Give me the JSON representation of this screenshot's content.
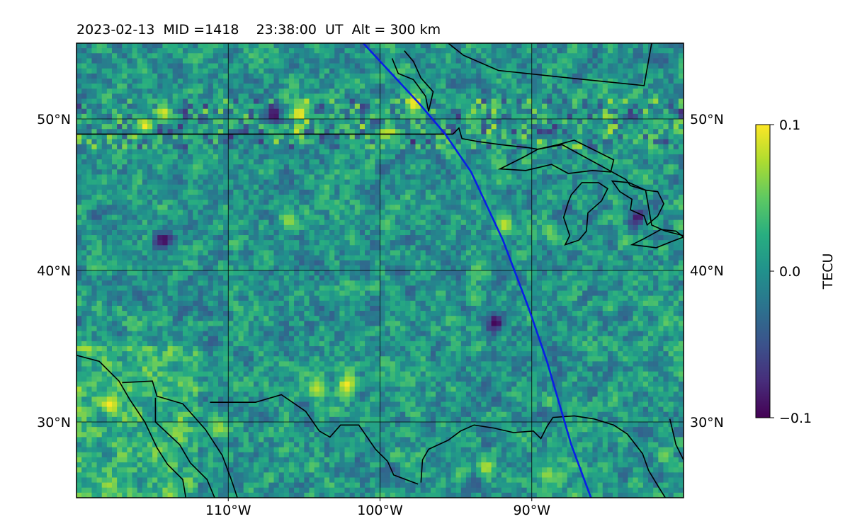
{
  "chart_data": {
    "type": "heatmap",
    "title": "2023-02-13  MID =1418    23:38:00  UT  Alt = 300 km",
    "projection": "map",
    "xlim": [
      -120,
      -80
    ],
    "ylim": [
      25,
      55
    ],
    "x_ticks": [
      {
        "value": -110,
        "label": "110°W"
      },
      {
        "value": -100,
        "label": "100°W"
      },
      {
        "value": -90,
        "label": "90°W"
      }
    ],
    "y_ticks": [
      {
        "value": 30,
        "label": "30°N"
      },
      {
        "value": 40,
        "label": "40°N"
      },
      {
        "value": 50,
        "label": "50°N"
      }
    ],
    "grid": true,
    "colormap": "viridis",
    "colorbar": {
      "label": "TECU",
      "vmin": -0.1,
      "vmax": 0.1,
      "ticks": [
        {
          "value": 0.1,
          "label": "0.1"
        },
        {
          "value": 0.0,
          "label": "0.0"
        },
        {
          "value": -0.1,
          "label": "−0.1"
        }
      ]
    },
    "track": {
      "color": "#0a1ee6",
      "points": [
        [
          -101.1,
          55
        ],
        [
          -97.4,
          51
        ],
        [
          -95.7,
          49
        ],
        [
          -94.0,
          46.5
        ],
        [
          -91.9,
          42
        ],
        [
          -90.2,
          37.5
        ],
        [
          -89.0,
          34
        ],
        [
          -87.4,
          28.5
        ],
        [
          -86.1,
          25
        ]
      ]
    },
    "hotspots": [
      {
        "lon": -115.5,
        "lat": 49.6,
        "value": 0.1
      },
      {
        "lon": -114.2,
        "lat": 50.4,
        "value": 0.09
      },
      {
        "lon": -105.3,
        "lat": 50.4,
        "value": 0.1
      },
      {
        "lon": -107.0,
        "lat": 50.3,
        "value": -0.1
      },
      {
        "lon": -97.7,
        "lat": 51.0,
        "value": 0.1
      },
      {
        "lon": -91.8,
        "lat": 43.0,
        "value": 0.085
      },
      {
        "lon": -117.8,
        "lat": 31.2,
        "value": 0.1
      },
      {
        "lon": -99.6,
        "lat": 49.1,
        "value": 0.08
      },
      {
        "lon": -106.0,
        "lat": 43.3,
        "value": 0.07
      },
      {
        "lon": -102.2,
        "lat": 32.4,
        "value": 0.1
      },
      {
        "lon": -104.2,
        "lat": 32.2,
        "value": 0.08
      },
      {
        "lon": -114.3,
        "lat": 42.0,
        "value": -0.1
      },
      {
        "lon": -92.4,
        "lat": 36.6,
        "value": -0.1
      },
      {
        "lon": -83.0,
        "lat": 43.5,
        "value": -0.09
      },
      {
        "lon": -110.6,
        "lat": 29.6,
        "value": 0.07
      },
      {
        "lon": -93.0,
        "lat": 27.0,
        "value": 0.08
      },
      {
        "lon": -89.0,
        "lat": 26.5,
        "value": 0.07
      }
    ],
    "coastlines": [
      [
        [
          -120,
          34.4
        ],
        [
          -118.5,
          34.0
        ],
        [
          -117.2,
          32.7
        ],
        [
          -116.5,
          31.5
        ],
        [
          -115.5,
          30.0
        ],
        [
          -114.7,
          28.3
        ],
        [
          -114.0,
          27.2
        ],
        [
          -113.0,
          26.2
        ],
        [
          -112.8,
          25.0
        ]
      ],
      [
        [
          -117.0,
          32.6
        ],
        [
          -115.0,
          32.7
        ],
        [
          -114.7,
          31.7
        ],
        [
          -113.0,
          31.2
        ],
        [
          -111.5,
          29.5
        ],
        [
          -110.4,
          27.8
        ],
        [
          -109.8,
          26.2
        ],
        [
          -109.4,
          25.0
        ]
      ],
      [
        [
          -114.8,
          31.6
        ],
        [
          -114.8,
          30.0
        ],
        [
          -113.2,
          28.5
        ],
        [
          -112.5,
          27.3
        ],
        [
          -111.4,
          26.2
        ],
        [
          -110.9,
          25.0
        ]
      ],
      [
        [
          -111.2,
          31.3
        ],
        [
          -108.2,
          31.3
        ],
        [
          -106.5,
          31.8
        ],
        [
          -104.9,
          30.7
        ],
        [
          -104.0,
          29.4
        ],
        [
          -103.3,
          29.0
        ],
        [
          -102.6,
          29.8
        ],
        [
          -101.4,
          29.8
        ],
        [
          -100.3,
          28.2
        ],
        [
          -99.5,
          27.4
        ],
        [
          -99.1,
          26.5
        ],
        [
          -97.5,
          25.9
        ]
      ],
      [
        [
          -97.3,
          26.0
        ],
        [
          -97.2,
          27.5
        ],
        [
          -96.8,
          28.2
        ],
        [
          -95.5,
          28.8
        ],
        [
          -94.7,
          29.4
        ],
        [
          -93.8,
          29.8
        ],
        [
          -92.5,
          29.6
        ],
        [
          -91.2,
          29.3
        ],
        [
          -89.9,
          29.4
        ],
        [
          -89.4,
          28.9
        ],
        [
          -89.0,
          29.7
        ],
        [
          -88.6,
          30.3
        ],
        [
          -87.2,
          30.4
        ],
        [
          -85.9,
          30.2
        ],
        [
          -84.6,
          29.8
        ],
        [
          -83.7,
          29.2
        ],
        [
          -82.7,
          27.9
        ],
        [
          -82.3,
          26.8
        ],
        [
          -81.7,
          25.8
        ],
        [
          -81.2,
          25.0
        ]
      ],
      [
        [
          -80.0,
          27.5
        ],
        [
          -80.5,
          28.5
        ],
        [
          -80.9,
          30.2
        ]
      ]
    ],
    "borders": [
      [
        [
          -120,
          49.0
        ],
        [
          -95.2,
          49.0
        ],
        [
          -94.8,
          49.4
        ],
        [
          -94.6,
          48.7
        ],
        [
          -93.5,
          48.5
        ],
        [
          -92.0,
          48.3
        ],
        [
          -90.2,
          48.1
        ],
        [
          -89.6,
          48.0
        ],
        [
          -88.0,
          48.3
        ],
        [
          -84.7,
          46.5
        ],
        [
          -83.8,
          46.0
        ],
        [
          -83.5,
          45.6
        ],
        [
          -82.5,
          45.3
        ],
        [
          -82.1,
          43.0
        ],
        [
          -81.2,
          42.6
        ],
        [
          -80.0,
          42.3
        ]
      ]
    ],
    "lakes": [
      [
        [
          -92.1,
          46.7
        ],
        [
          -90.4,
          46.6
        ],
        [
          -88.7,
          47.0
        ],
        [
          -87.6,
          46.4
        ],
        [
          -86.0,
          46.6
        ],
        [
          -84.8,
          46.5
        ],
        [
          -84.6,
          47.3
        ],
        [
          -85.8,
          47.9
        ],
        [
          -87.2,
          48.6
        ],
        [
          -88.3,
          48.3
        ],
        [
          -89.6,
          48.0
        ],
        [
          -90.5,
          47.5
        ],
        [
          -92.1,
          46.7
        ]
      ],
      [
        [
          -87.8,
          41.7
        ],
        [
          -87.5,
          42.3
        ],
        [
          -87.9,
          43.5
        ],
        [
          -87.6,
          44.5
        ],
        [
          -87.4,
          45.0
        ],
        [
          -86.7,
          45.8
        ],
        [
          -85.6,
          45.8
        ],
        [
          -85.0,
          45.4
        ],
        [
          -85.4,
          44.6
        ],
        [
          -86.3,
          43.8
        ],
        [
          -86.4,
          42.6
        ],
        [
          -86.9,
          42.0
        ],
        [
          -87.8,
          41.7
        ]
      ],
      [
        [
          -84.7,
          45.9
        ],
        [
          -83.6,
          45.8
        ],
        [
          -82.5,
          45.3
        ],
        [
          -81.7,
          45.2
        ],
        [
          -81.3,
          44.4
        ],
        [
          -81.7,
          43.6
        ],
        [
          -82.4,
          43.0
        ],
        [
          -82.6,
          43.6
        ],
        [
          -83.5,
          44.0
        ],
        [
          -83.4,
          44.7
        ],
        [
          -84.2,
          45.2
        ],
        [
          -84.7,
          45.9
        ]
      ],
      [
        [
          -83.4,
          41.7
        ],
        [
          -81.8,
          41.5
        ],
        [
          -80.8,
          41.9
        ],
        [
          -80.0,
          42.2
        ],
        [
          -80.5,
          42.6
        ],
        [
          -81.5,
          42.7
        ],
        [
          -82.6,
          42.1
        ],
        [
          -83.4,
          41.7
        ]
      ]
    ],
    "hudson_bay": [
      [
        -95.5,
        55
      ],
      [
        -94.5,
        54.2
      ],
      [
        -92.2,
        53.2
      ],
      [
        -87.5,
        52.7
      ],
      [
        -82.6,
        52.2
      ],
      [
        -82.1,
        55.0
      ]
    ],
    "lake_winnipeg": [
      [
        -99.2,
        54.0
      ],
      [
        -98.8,
        53.0
      ],
      [
        -97.8,
        52.6
      ],
      [
        -97.0,
        51.5
      ],
      [
        -96.8,
        50.5
      ],
      [
        -96.5,
        51.8
      ],
      [
        -97.3,
        52.7
      ],
      [
        -97.8,
        53.8
      ],
      [
        -98.4,
        54.5
      ]
    ]
  }
}
